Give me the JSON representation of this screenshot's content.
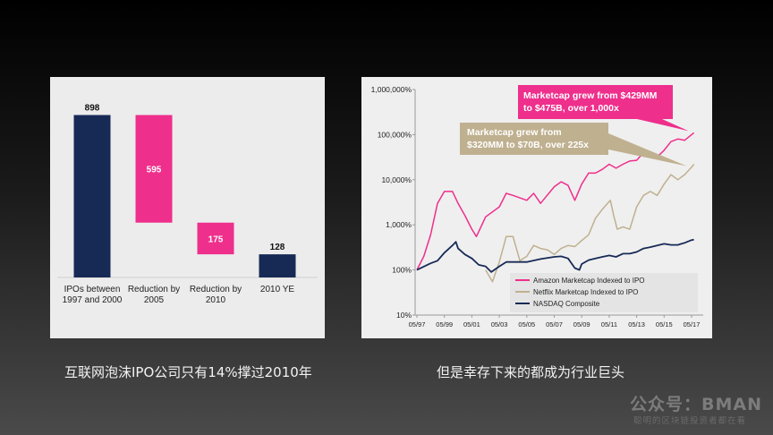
{
  "chart_data": [
    {
      "type": "bar",
      "subtype": "waterfall",
      "categories": [
        "IPOs between\n1997 and 2000",
        "Reduction by\n2005",
        "Reduction by\n2010",
        "2010 YE"
      ],
      "values": [
        898,
        595,
        175,
        128
      ],
      "value_labels": [
        "898",
        "595",
        "175",
        "128"
      ],
      "bar_ranges": [
        [
          0,
          898
        ],
        [
          303,
          898
        ],
        [
          128,
          303
        ],
        [
          0,
          128
        ]
      ],
      "colors": [
        "#172a56",
        "#ee2f8c",
        "#ee2f8c",
        "#172a56"
      ],
      "ylim": [
        0,
        950
      ],
      "grid": false,
      "title": "",
      "xlabel": "",
      "ylabel": ""
    },
    {
      "type": "line",
      "yscale": "log",
      "ylim": [
        10,
        1000000
      ],
      "y_ticks": [
        "10%",
        "100%",
        "1,000%",
        "10,000%",
        "100,000%",
        "1,000,000%"
      ],
      "x_ticks": [
        "05/97",
        "05/99",
        "05/01",
        "05/03",
        "05/05",
        "05/07",
        "05/09",
        "05/11",
        "05/13",
        "05/15",
        "05/17"
      ],
      "xlim": [
        "05/97",
        "07/17"
      ],
      "legend_position": "bottom-right",
      "grid": false,
      "series": [
        {
          "name": "Amazon Marketcap Indexed to IPO",
          "color": "#ee2f8c",
          "points": [
            [
              "05/97",
              100
            ],
            [
              "11/97",
              200
            ],
            [
              "05/98",
              600
            ],
            [
              "11/98",
              3000
            ],
            [
              "05/99",
              5500
            ],
            [
              "12/99",
              5500
            ],
            [
              "05/00",
              3000
            ],
            [
              "11/00",
              1600
            ],
            [
              "05/01",
              800
            ],
            [
              "09/01",
              550
            ],
            [
              "05/02",
              1500
            ],
            [
              "05/03",
              2500
            ],
            [
              "11/03",
              5000
            ],
            [
              "05/04",
              4500
            ],
            [
              "05/05",
              3500
            ],
            [
              "11/05",
              5000
            ],
            [
              "05/06",
              3000
            ],
            [
              "05/07",
              7000
            ],
            [
              "11/07",
              9000
            ],
            [
              "05/08",
              7500
            ],
            [
              "11/08",
              3500
            ],
            [
              "05/09",
              8000
            ],
            [
              "11/09",
              14000
            ],
            [
              "05/10",
              14000
            ],
            [
              "11/10",
              17000
            ],
            [
              "05/11",
              22000
            ],
            [
              "11/11",
              18000
            ],
            [
              "05/12",
              22000
            ],
            [
              "11/12",
              26000
            ],
            [
              "05/13",
              27000
            ],
            [
              "11/13",
              40000
            ],
            [
              "05/14",
              33000
            ],
            [
              "11/14",
              32000
            ],
            [
              "05/15",
              45000
            ],
            [
              "11/15",
              70000
            ],
            [
              "05/16",
              80000
            ],
            [
              "11/16",
              75000
            ],
            [
              "05/17",
              100000
            ],
            [
              "07/17",
              110000
            ]
          ]
        },
        {
          "name": "Netflix Marketcap Indexed to IPO",
          "color": "#bfb08f",
          "points": [
            [
              "05/02",
              100
            ],
            [
              "11/02",
              55
            ],
            [
              "05/03",
              150
            ],
            [
              "11/03",
              550
            ],
            [
              "05/04",
              550
            ],
            [
              "11/04",
              160
            ],
            [
              "05/05",
              200
            ],
            [
              "11/05",
              350
            ],
            [
              "05/06",
              300
            ],
            [
              "11/06",
              280
            ],
            [
              "05/07",
              220
            ],
            [
              "11/07",
              300
            ],
            [
              "05/08",
              350
            ],
            [
              "11/08",
              330
            ],
            [
              "05/09",
              450
            ],
            [
              "11/09",
              600
            ],
            [
              "05/10",
              1400
            ],
            [
              "11/10",
              2200
            ],
            [
              "06/11",
              3500
            ],
            [
              "09/11",
              1600
            ],
            [
              "12/11",
              800
            ],
            [
              "05/12",
              900
            ],
            [
              "11/12",
              800
            ],
            [
              "05/13",
              2500
            ],
            [
              "11/13",
              4500
            ],
            [
              "05/14",
              5500
            ],
            [
              "11/14",
              4500
            ],
            [
              "05/15",
              8000
            ],
            [
              "11/15",
              13000
            ],
            [
              "05/16",
              10000
            ],
            [
              "11/16",
              13000
            ],
            [
              "05/17",
              19000
            ],
            [
              "07/17",
              22000
            ]
          ]
        },
        {
          "name": "NASDAQ Composite",
          "color": "#172a56",
          "points": [
            [
              "05/97",
              100
            ],
            [
              "05/98",
              140
            ],
            [
              "11/98",
              160
            ],
            [
              "05/99",
              240
            ],
            [
              "12/99",
              350
            ],
            [
              "03/00",
              420
            ],
            [
              "05/00",
              300
            ],
            [
              "11/00",
              220
            ],
            [
              "05/01",
              180
            ],
            [
              "11/01",
              130
            ],
            [
              "05/02",
              120
            ],
            [
              "10/02",
              90
            ],
            [
              "05/03",
              120
            ],
            [
              "11/03",
              150
            ],
            [
              "05/04",
              150
            ],
            [
              "05/05",
              150
            ],
            [
              "05/06",
              175
            ],
            [
              "05/07",
              195
            ],
            [
              "11/07",
              200
            ],
            [
              "05/08",
              180
            ],
            [
              "11/08",
              110
            ],
            [
              "03/09",
              100
            ],
            [
              "05/09",
              135
            ],
            [
              "11/09",
              165
            ],
            [
              "05/10",
              180
            ],
            [
              "11/10",
              195
            ],
            [
              "05/11",
              210
            ],
            [
              "11/11",
              195
            ],
            [
              "05/12",
              230
            ],
            [
              "11/12",
              230
            ],
            [
              "05/13",
              250
            ],
            [
              "11/13",
              300
            ],
            [
              "05/14",
              320
            ],
            [
              "11/14",
              350
            ],
            [
              "05/15",
              380
            ],
            [
              "11/15",
              360
            ],
            [
              "05/16",
              360
            ],
            [
              "11/16",
              400
            ],
            [
              "05/17",
              460
            ],
            [
              "07/17",
              470
            ]
          ]
        }
      ],
      "annotations": [
        {
          "text": "Marketcap grew from $429MM\nto $475B, over 1,000x",
          "color": "#ee2f8c",
          "text_color": "#ffffff",
          "points_to": "Amazon Marketcap Indexed to IPO"
        },
        {
          "text": "Marketcap grew  from\n$320MM to $70B, over 225x",
          "color": "#bfb08f",
          "text_color": "#ffffff",
          "points_to": "Netflix Marketcap Indexed to IPO"
        }
      ],
      "title": "",
      "xlabel": "",
      "ylabel": ""
    }
  ],
  "captions": {
    "left": "互联网泡沫IPO公司只有14%撑过2010年",
    "right": "但是幸存下来的都成为行业巨头"
  },
  "watermark": {
    "title": "公众号：BMAN",
    "subtitle": "聪明的区块链投资者都在看"
  }
}
